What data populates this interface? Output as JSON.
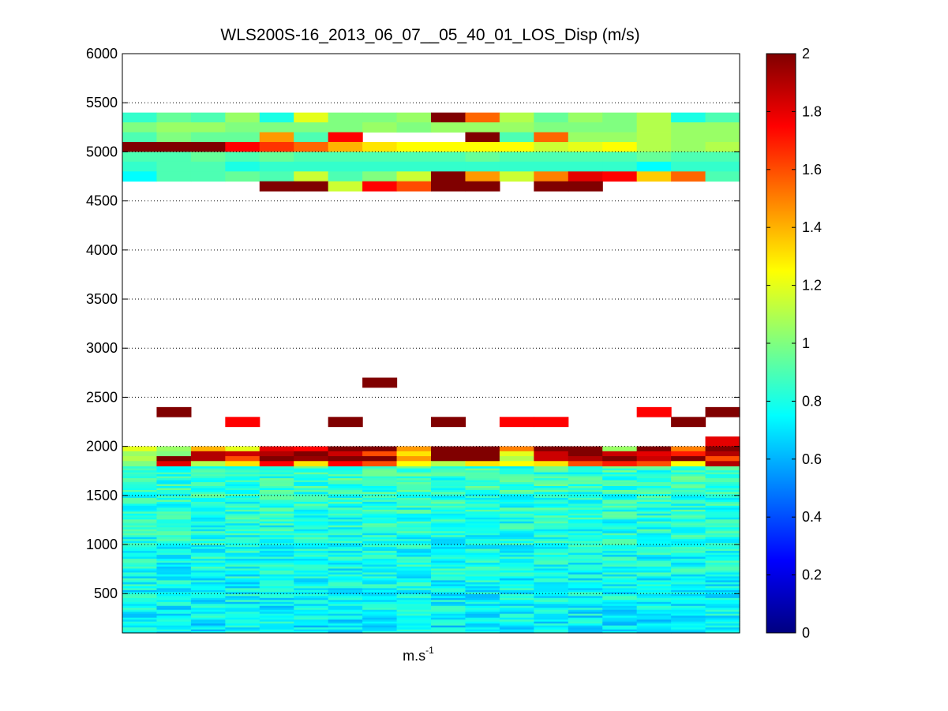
{
  "chart_data": {
    "type": "heatmap",
    "title": "WLS200S-16_2013_06_07__05_40_01_LOS_Disp (m/s)",
    "xlabel_base": "m.s",
    "xlabel_exp": "-1",
    "ylabel": "",
    "ylim": [
      100,
      6000
    ],
    "yticks": [
      500,
      1000,
      1500,
      2000,
      2500,
      3000,
      3500,
      4000,
      4500,
      5000,
      5500,
      6000
    ],
    "y_grid": "dotted",
    "n_columns": 18,
    "colormap": "jet",
    "color_range": [
      0,
      2
    ],
    "colorbar_ticks": [
      0,
      0.2,
      0.4,
      0.6,
      0.8,
      1,
      1.2,
      1.4,
      1.6,
      1.8,
      2
    ],
    "colorbar_position": "right",
    "bands": [
      {
        "y0": 5300,
        "y1": 5400,
        "values": [
          0.85,
          0.95,
          0.9,
          1.05,
          0.8,
          1.2,
          1.0,
          1.0,
          1.05,
          2.0,
          1.55,
          1.1,
          0.95,
          1.05,
          1.0,
          1.1,
          0.8,
          0.9
        ]
      },
      {
        "y0": 5200,
        "y1": 5300,
        "values": [
          1.0,
          1.05,
          1.05,
          1.0,
          1.0,
          1.0,
          1.0,
          1.05,
          1.0,
          1.05,
          1.05,
          1.05,
          1.0,
          1.0,
          1.0,
          1.1,
          1.05,
          1.05
        ]
      },
      {
        "y0": 5100,
        "y1": 5200,
        "values": [
          0.9,
          1.0,
          0.95,
          0.95,
          1.45,
          0.9,
          1.75,
          null,
          null,
          null,
          2.0,
          0.9,
          1.55,
          1.05,
          1.05,
          1.1,
          1.05,
          1.05
        ]
      },
      {
        "y0": 5000,
        "y1": 5100,
        "values": [
          2.0,
          2.0,
          2.0,
          1.75,
          1.65,
          1.55,
          1.4,
          1.3,
          1.25,
          1.25,
          1.25,
          1.25,
          1.15,
          1.2,
          1.25,
          1.1,
          1.05,
          1.1
        ]
      },
      {
        "y0": 4900,
        "y1": 5000,
        "values": [
          0.9,
          0.9,
          0.95,
          0.9,
          0.95,
          0.9,
          0.9,
          0.9,
          0.9,
          0.9,
          0.95,
          0.9,
          0.9,
          0.9,
          0.9,
          0.95,
          0.9,
          0.9
        ]
      },
      {
        "y0": 4800,
        "y1": 4900,
        "values": [
          0.85,
          0.9,
          0.9,
          0.8,
          0.85,
          0.85,
          0.85,
          0.85,
          0.85,
          0.85,
          0.85,
          0.85,
          0.85,
          0.85,
          0.85,
          0.75,
          0.85,
          0.85
        ]
      },
      {
        "y0": 4700,
        "y1": 4800,
        "values": [
          0.75,
          0.9,
          0.9,
          0.95,
          0.9,
          1.15,
          0.9,
          1.0,
          1.15,
          2.0,
          1.45,
          1.15,
          1.5,
          1.8,
          1.75,
          1.35,
          1.55,
          0.9
        ]
      },
      {
        "y0": 4600,
        "y1": 4700,
        "values": [
          null,
          null,
          null,
          null,
          2.0,
          2.0,
          1.15,
          1.75,
          1.6,
          2.0,
          2.0,
          null,
          2.0,
          2.0,
          null,
          null,
          null,
          null
        ]
      },
      {
        "y0": 2600,
        "y1": 2700,
        "values": [
          null,
          null,
          null,
          null,
          null,
          null,
          null,
          2.0,
          null,
          null,
          null,
          null,
          null,
          null,
          null,
          null,
          null,
          null
        ]
      },
      {
        "y0": 2300,
        "y1": 2400,
        "values": [
          null,
          2.0,
          null,
          null,
          null,
          null,
          null,
          null,
          null,
          null,
          null,
          null,
          null,
          null,
          null,
          1.75,
          null,
          2.0
        ]
      },
      {
        "y0": 2200,
        "y1": 2300,
        "values": [
          null,
          null,
          null,
          1.75,
          null,
          null,
          2.0,
          null,
          null,
          2.0,
          null,
          1.75,
          1.75,
          null,
          null,
          null,
          2.0,
          null
        ]
      },
      {
        "y0": 2000,
        "y1": 2100,
        "values": [
          null,
          null,
          null,
          null,
          null,
          null,
          null,
          null,
          null,
          null,
          null,
          null,
          null,
          null,
          null,
          null,
          null,
          1.8
        ]
      },
      {
        "y0": 1950,
        "y1": 2000,
        "values": [
          1.2,
          1.05,
          1.4,
          1.2,
          1.8,
          1.75,
          2.0,
          2.0,
          1.45,
          2.0,
          2.0,
          1.5,
          2.0,
          2.0,
          1.05,
          2.0,
          1.5,
          2.0
        ]
      },
      {
        "y0": 1900,
        "y1": 1950,
        "values": [
          1.05,
          1.0,
          1.9,
          1.85,
          1.9,
          2.0,
          1.85,
          1.6,
          1.3,
          2.0,
          2.0,
          1.2,
          1.85,
          2.0,
          1.85,
          1.8,
          1.7,
          1.9
        ]
      },
      {
        "y0": 1850,
        "y1": 1900,
        "values": [
          1.1,
          2.0,
          1.9,
          1.6,
          2.0,
          1.95,
          2.0,
          2.0,
          1.45,
          2.0,
          2.0,
          1.1,
          1.85,
          1.9,
          2.0,
          1.85,
          2.0,
          1.6
        ]
      },
      {
        "y0": 1800,
        "y1": 1850,
        "values": [
          1.0,
          1.8,
          1.1,
          1.3,
          1.75,
          1.3,
          1.75,
          1.6,
          1.25,
          1.1,
          1.3,
          1.25,
          1.3,
          1.6,
          1.7,
          1.6,
          1.25,
          1.9
        ]
      }
    ],
    "lower_field": {
      "y0": 100,
      "y1": 1800,
      "min": 0.55,
      "max": 1.05
    }
  }
}
